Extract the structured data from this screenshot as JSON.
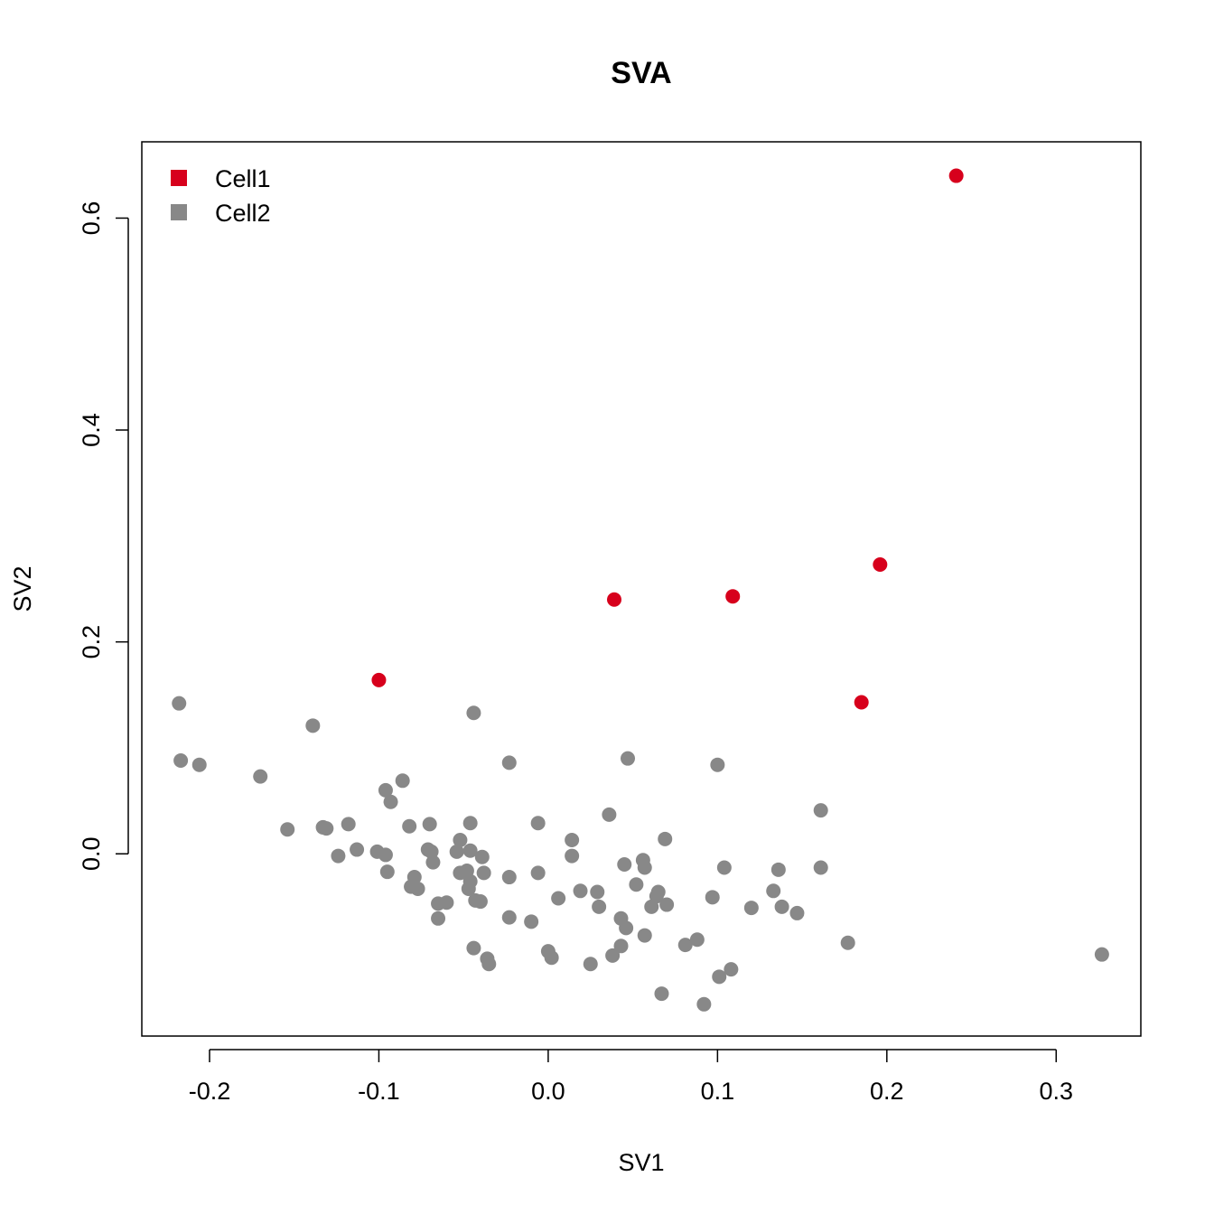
{
  "chart_data": {
    "type": "scatter",
    "title": "SVA",
    "xlabel": "SV1",
    "ylabel": "SV2",
    "xlim": [
      -0.24,
      0.35
    ],
    "ylim": [
      -0.172,
      0.672
    ],
    "xticks": [
      -0.2,
      -0.1,
      0.0,
      0.1,
      0.2,
      0.3
    ],
    "xtick_labels": [
      "-0.2",
      "-0.1",
      "0.0",
      "0.1",
      "0.2",
      "0.3"
    ],
    "yticks": [
      0.0,
      0.2,
      0.4,
      0.6
    ],
    "ytick_labels": [
      "0.0",
      "0.2",
      "0.4",
      "0.6"
    ],
    "grid": false,
    "legend_position": "top-left",
    "series": [
      {
        "name": "Cell1",
        "color": "#d7001c",
        "points": [
          [
            0.241,
            0.64
          ],
          [
            0.196,
            0.273
          ],
          [
            0.109,
            0.243
          ],
          [
            0.039,
            0.24
          ],
          [
            -0.1,
            0.164
          ],
          [
            0.185,
            0.143
          ]
        ]
      },
      {
        "name": "Cell2",
        "color": "#888888",
        "points": [
          [
            -0.218,
            0.142
          ],
          [
            -0.139,
            0.121
          ],
          [
            -0.044,
            0.133
          ],
          [
            -0.217,
            0.088
          ],
          [
            -0.206,
            0.084
          ],
          [
            -0.023,
            0.086
          ],
          [
            0.047,
            0.09
          ],
          [
            0.1,
            0.084
          ],
          [
            -0.17,
            0.073
          ],
          [
            -0.086,
            0.069
          ],
          [
            -0.096,
            0.06
          ],
          [
            -0.093,
            0.049
          ],
          [
            0.036,
            0.037
          ],
          [
            0.161,
            0.041
          ],
          [
            -0.154,
            0.023
          ],
          [
            -0.133,
            0.025
          ],
          [
            -0.131,
            0.024
          ],
          [
            -0.118,
            0.028
          ],
          [
            -0.082,
            0.026
          ],
          [
            -0.07,
            0.028
          ],
          [
            -0.046,
            0.029
          ],
          [
            -0.006,
            0.029
          ],
          [
            0.014,
            0.013
          ],
          [
            0.069,
            0.014
          ],
          [
            -0.052,
            0.013
          ],
          [
            -0.113,
            0.004
          ],
          [
            -0.101,
            0.002
          ],
          [
            -0.096,
            -0.001
          ],
          [
            -0.124,
            -0.002
          ],
          [
            -0.071,
            0.004
          ],
          [
            -0.069,
            0.002
          ],
          [
            -0.054,
            0.002
          ],
          [
            -0.046,
            0.003
          ],
          [
            -0.068,
            -0.008
          ],
          [
            -0.039,
            -0.003
          ],
          [
            0.014,
            -0.002
          ],
          [
            -0.048,
            -0.016
          ],
          [
            -0.052,
            -0.018
          ],
          [
            -0.038,
            -0.018
          ],
          [
            -0.023,
            -0.022
          ],
          [
            -0.006,
            -0.018
          ],
          [
            0.045,
            -0.01
          ],
          [
            0.056,
            -0.006
          ],
          [
            0.057,
            -0.013
          ],
          [
            0.104,
            -0.013
          ],
          [
            0.136,
            -0.015
          ],
          [
            0.161,
            -0.013
          ],
          [
            -0.095,
            -0.017
          ],
          [
            -0.079,
            -0.022
          ],
          [
            -0.081,
            -0.031
          ],
          [
            -0.077,
            -0.033
          ],
          [
            -0.046,
            -0.026
          ],
          [
            -0.047,
            -0.033
          ],
          [
            -0.043,
            -0.044
          ],
          [
            -0.04,
            -0.045
          ],
          [
            -0.065,
            -0.047
          ],
          [
            -0.06,
            -0.046
          ],
          [
            0.019,
            -0.035
          ],
          [
            0.029,
            -0.036
          ],
          [
            0.006,
            -0.042
          ],
          [
            0.03,
            -0.05
          ],
          [
            0.052,
            -0.029
          ],
          [
            0.065,
            -0.036
          ],
          [
            0.064,
            -0.04
          ],
          [
            0.061,
            -0.05
          ],
          [
            0.07,
            -0.048
          ],
          [
            0.097,
            -0.041
          ],
          [
            0.12,
            -0.051
          ],
          [
            0.133,
            -0.035
          ],
          [
            0.138,
            -0.05
          ],
          [
            0.147,
            -0.056
          ],
          [
            -0.065,
            -0.061
          ],
          [
            -0.023,
            -0.06
          ],
          [
            -0.01,
            -0.064
          ],
          [
            0.043,
            -0.061
          ],
          [
            0.046,
            -0.07
          ],
          [
            0.057,
            -0.077
          ],
          [
            0.088,
            -0.081
          ],
          [
            0.081,
            -0.086
          ],
          [
            0.177,
            -0.084
          ],
          [
            -0.044,
            -0.089
          ],
          [
            -0.036,
            -0.099
          ],
          [
            -0.035,
            -0.104
          ],
          [
            0.0,
            -0.092
          ],
          [
            0.002,
            -0.098
          ],
          [
            0.025,
            -0.104
          ],
          [
            0.038,
            -0.096
          ],
          [
            0.043,
            -0.087
          ],
          [
            0.101,
            -0.116
          ],
          [
            0.108,
            -0.109
          ],
          [
            0.067,
            -0.132
          ],
          [
            0.092,
            -0.142
          ],
          [
            0.327,
            -0.095
          ]
        ]
      }
    ]
  }
}
